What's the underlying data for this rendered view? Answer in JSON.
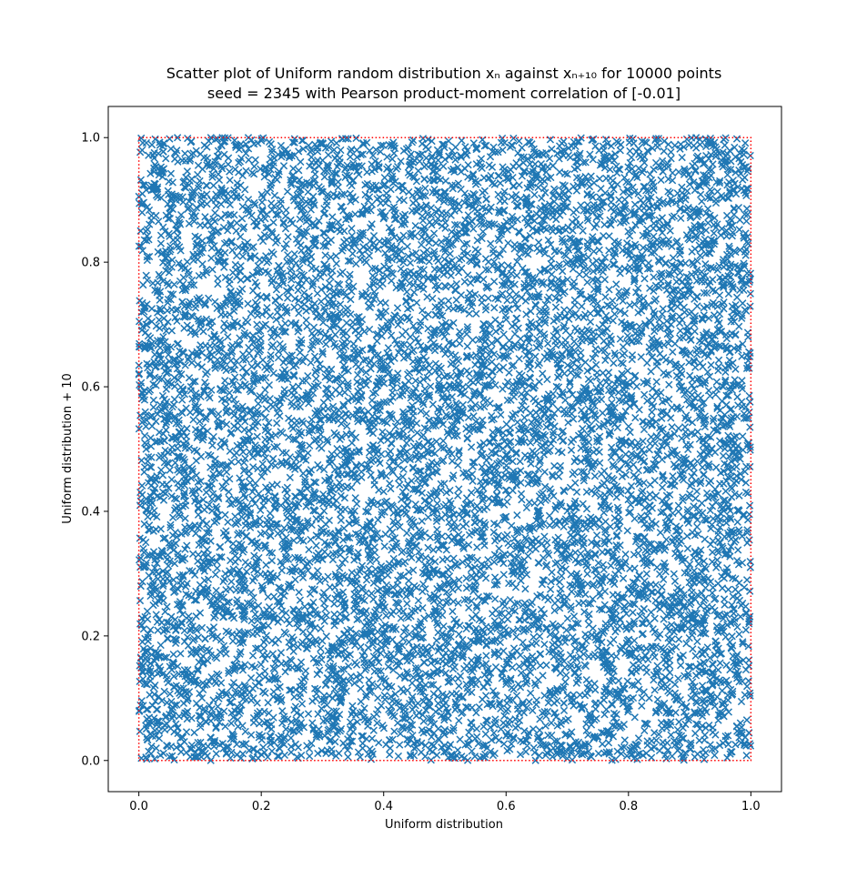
{
  "chart_data": {
    "type": "scatter",
    "title_lines": [
      "Scatter plot of Uniform random distribution xₙ against xₙ₊₁₀ for 10000 points",
      "seed = 2345 with Pearson product-moment correlation of [-0.01]"
    ],
    "xlabel": "Uniform distribution",
    "ylabel": "Uniform distribution + 10",
    "xlim": [
      -0.05,
      1.05
    ],
    "ylim": [
      -0.05,
      1.05
    ],
    "x_ticks": [
      0.0,
      0.2,
      0.4,
      0.6,
      0.8,
      1.0
    ],
    "y_ticks": [
      0.0,
      0.2,
      0.4,
      0.6,
      0.8,
      1.0
    ],
    "x_tick_labels": [
      "0.0",
      "0.2",
      "0.4",
      "0.6",
      "0.8",
      "1.0"
    ],
    "y_tick_labels": [
      "0.0",
      "0.2",
      "0.4",
      "0.6",
      "0.8",
      "1.0"
    ],
    "grid": false,
    "point_count": 10000,
    "seed": 2345,
    "pearson_correlation": -0.01,
    "marker": "x",
    "point_color": "#1f77b4",
    "reference_box": {
      "x": [
        0,
        1
      ],
      "y": [
        0,
        1
      ],
      "color": "#ff0000",
      "style": "dotted"
    },
    "points_note": "uniform random pairs on [0,1]x[0,1]"
  }
}
